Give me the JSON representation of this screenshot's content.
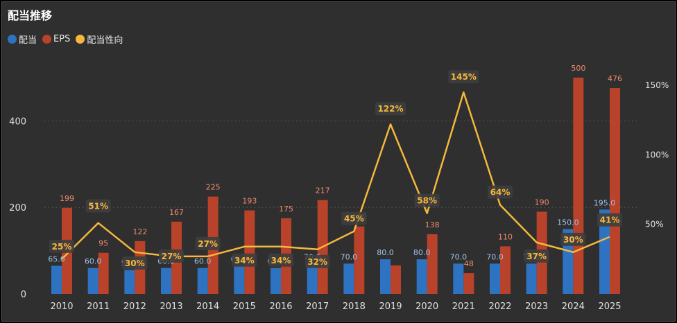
{
  "title": "配当推移",
  "colors": {
    "dividend": "#2e73c2",
    "eps": "#b8422a",
    "payout": "#f5b83d",
    "background": "#2f2f2f",
    "grid": "#5a5a5a",
    "axis_text": "#e0e0e0"
  },
  "chart_data": {
    "type": "bar",
    "title": "配当推移",
    "categories": [
      "2010",
      "2011",
      "2012",
      "2013",
      "2014",
      "2015",
      "2016",
      "2017",
      "2018",
      "2019",
      "2020",
      "2021",
      "2022",
      "2023",
      "2024",
      "2025"
    ],
    "series": [
      {
        "name": "配当",
        "type": "bar",
        "axis": "left",
        "values": [
          65.0,
          60.0,
          55.0,
          60.0,
          60.0,
          65.0,
          60.0,
          70.0,
          70.0,
          80.0,
          80.0,
          70.0,
          70.0,
          70.0,
          150.0,
          195.0
        ],
        "labels": [
          "65.0",
          "60.0",
          "55.0",
          "60.0",
          "60.0",
          "65.0",
          "60.0",
          "70.0",
          "70.0",
          "80.0",
          "80.0",
          "70.0",
          "70.0",
          "70.0",
          "150.0",
          "195.0"
        ]
      },
      {
        "name": "EPS",
        "type": "bar",
        "axis": "left",
        "values": [
          199,
          95,
          122,
          167,
          225,
          193,
          175,
          217,
          156,
          66,
          138,
          48,
          110,
          190,
          500,
          476
        ],
        "labels": [
          "199",
          "95",
          "122",
          "167",
          "225",
          "193",
          "175",
          "217",
          "156",
          "",
          "138",
          "48",
          "110",
          "190",
          "500",
          "476"
        ]
      },
      {
        "name": "配当性向",
        "type": "line",
        "axis": "right",
        "values": [
          25,
          51,
          30,
          27,
          27,
          34,
          34,
          32,
          45,
          122,
          58,
          145,
          64,
          37,
          30,
          41
        ],
        "labels": [
          "25%",
          "51%",
          "30%",
          "27%",
          "27%",
          "34%",
          "34%",
          "32%",
          "45%",
          "122%",
          "58%",
          "145%",
          "64%",
          "37%",
          "30%",
          "41%"
        ]
      }
    ],
    "ylim_left": [
      0,
      500
    ],
    "yticks_left": [
      "0",
      "200",
      "400"
    ],
    "ylim_right": [
      0,
      160
    ],
    "yticks_right": [
      "50%",
      "100%",
      "150%"
    ],
    "grid": true,
    "legend_position": "top-left"
  }
}
